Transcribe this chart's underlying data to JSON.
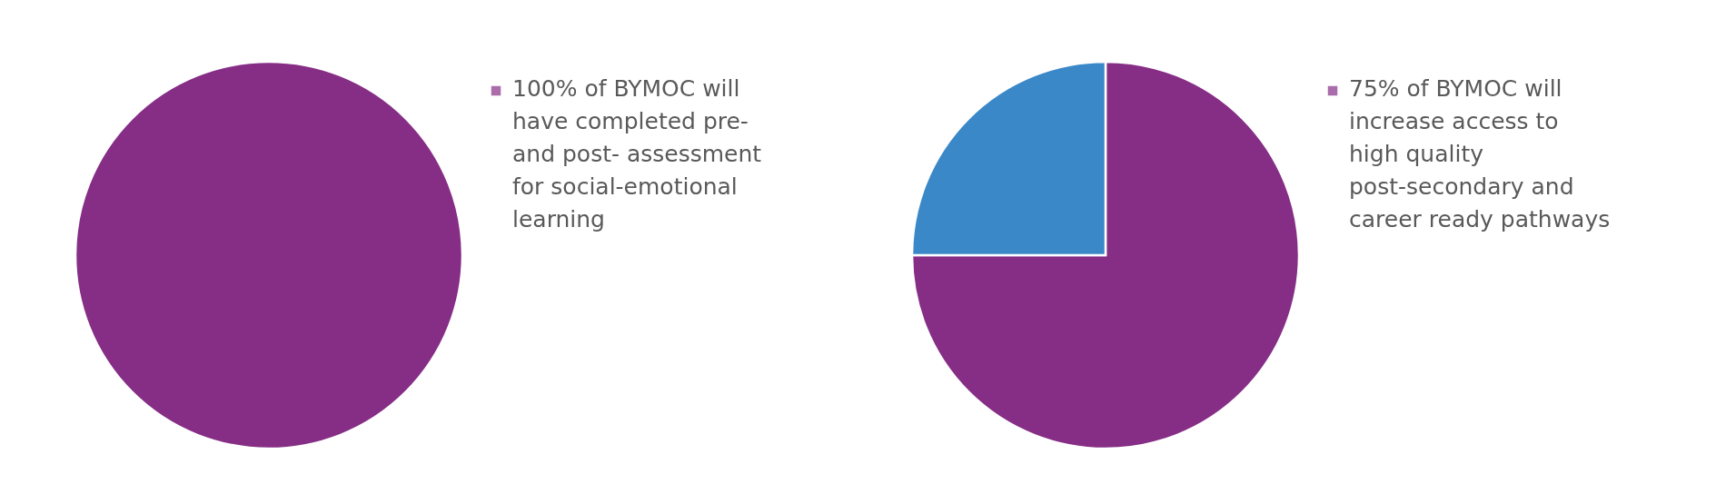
{
  "chart_data": [
    {
      "type": "pie",
      "categories": [
        "100% of BYMOC will have completed pre- and post- assessment for social-emotional learning"
      ],
      "values": [
        100
      ],
      "colors": [
        "#862d86"
      ],
      "legend": "right"
    },
    {
      "type": "pie",
      "categories": [
        "75% of BYMOC will increase access to high quality post-secondary and career ready pathways",
        null
      ],
      "values": [
        75,
        25
      ],
      "colors": [
        "#862d86",
        "#3b88c8"
      ],
      "legend": "right"
    }
  ]
}
